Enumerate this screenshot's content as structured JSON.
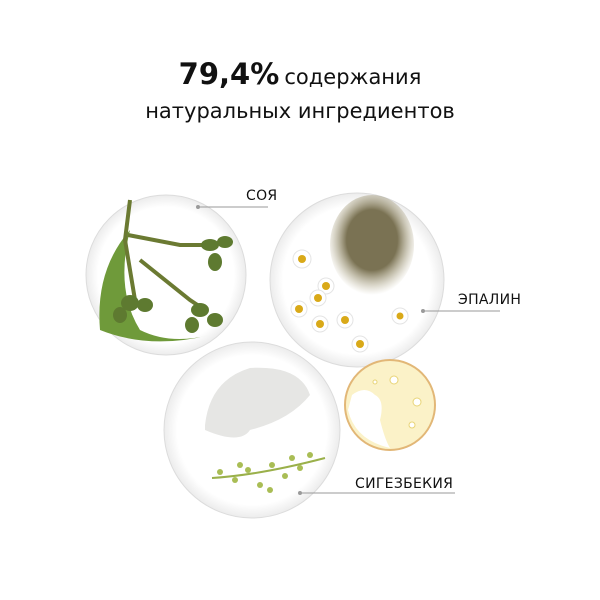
{
  "headline": {
    "percent": "79,4%",
    "line1_rest": "содержания",
    "line2": "натуральных ингредиентов"
  },
  "ingredients": [
    {
      "label": "СОЯ",
      "icon": "eucalyptus-branch-dish"
    },
    {
      "label": "ЭПАЛИН",
      "icon": "powder-chamomile-dish"
    },
    {
      "label": "СИГЕЗБЕКИЯ",
      "icon": "cream-herb-dish"
    }
  ],
  "extra_dish": {
    "icon": "oil-dish"
  },
  "colors": {
    "text": "#111111",
    "leaf": "#6f9a3a",
    "powder": "#7d7556",
    "oil": "#f3e27a",
    "leader": "#9a9a9a"
  }
}
